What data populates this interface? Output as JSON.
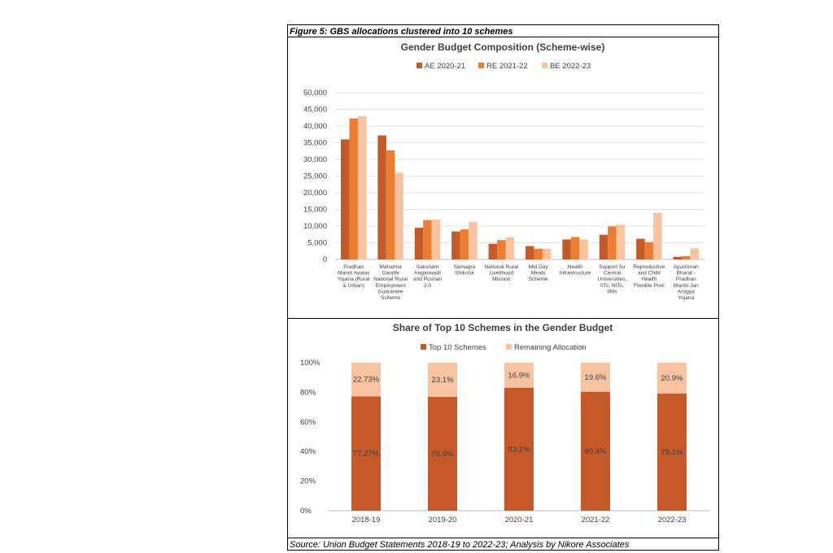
{
  "figure": {
    "caption": "Figure 5: GBS allocations clustered into 10 schemes",
    "source": "Source: Union Budget Statements 2018-19 to 2022-23; Analysis by Nikore Associates"
  },
  "colors": {
    "dark": "#c55a28",
    "mid": "#ed7d31",
    "light": "#f8c3a0",
    "grid": "#d9d9d9",
    "axis": "#bfbfbf"
  },
  "chart_data": [
    {
      "type": "bar",
      "title": "Gender Budget Composition (Scheme-wise)",
      "legend_position": "top",
      "grid": true,
      "ylim": [
        0,
        50000
      ],
      "yticks": [
        "0",
        "5,000",
        "10,000",
        "15,000",
        "20,000",
        "25,000",
        "30,000",
        "35,000",
        "40,000",
        "45,000",
        "50,000"
      ],
      "categories": [
        [
          "Pradhan",
          "Mantri Awaas",
          "Yojana (Rural",
          "& Urban)"
        ],
        [
          "Mahatma",
          "Gandhi",
          "National Rural",
          "Employment",
          "Guarantee",
          "Scheme"
        ],
        [
          "Saksham",
          "Anganwadi",
          "and Poshan",
          "2.0"
        ],
        [
          "Samagra",
          "Shiksha"
        ],
        [
          "National Rural",
          "Livelihood",
          "Mission"
        ],
        [
          "Mid Day",
          "Meals",
          "Scheme"
        ],
        [
          "Health",
          "Infrastructure"
        ],
        [
          "Support for",
          "Central",
          "Universities,",
          "IITs, NITs,",
          "IIMs"
        ],
        [
          "Reproductive",
          "and Child",
          "Health",
          "Flexible Pool"
        ],
        [
          "Ayushman",
          "Bharat -",
          "Pradhan",
          "Mantri Jan",
          "Arogya",
          "Yojana"
        ]
      ],
      "series": [
        {
          "name": "AE 2020-21",
          "color": "#c55a28",
          "values": [
            36000,
            37200,
            9500,
            8400,
            4700,
            4000,
            6000,
            7400,
            6200,
            800
          ]
        },
        {
          "name": "RE 2021-22",
          "color": "#ed7d31",
          "values": [
            42300,
            32700,
            11800,
            9000,
            5800,
            3200,
            6700,
            9900,
            5200,
            1000
          ]
        },
        {
          "name": "BE 2022-23",
          "color": "#f8c3a0",
          "values": [
            43000,
            26000,
            12000,
            11300,
            6600,
            3200,
            6000,
            10400,
            14000,
            3300
          ]
        }
      ]
    },
    {
      "type": "bar",
      "stacked": true,
      "title": "Share of Top 10 Schemes in the Gender Budget",
      "legend_position": "top",
      "grid": false,
      "ylim": [
        0,
        100
      ],
      "yticks": [
        "0%",
        "20%",
        "40%",
        "60%",
        "80%",
        "100%"
      ],
      "categories": [
        "2018-19",
        "2019-20",
        "2020-21",
        "2021-22",
        "2022-23"
      ],
      "series": [
        {
          "name": "Top 10 Schemes",
          "color": "#c55a28",
          "values": [
            77.27,
            76.9,
            83.1,
            80.4,
            79.1
          ],
          "labels": [
            "77.27%",
            "76.9%",
            "83.1%",
            "80.4%",
            "79.1%"
          ]
        },
        {
          "name": "Remaining Allocation",
          "color": "#f8c3a0",
          "values": [
            22.73,
            23.1,
            16.9,
            19.6,
            20.9
          ],
          "labels": [
            "22.73%",
            "23.1%",
            "16.9%",
            "19.6%",
            "20.9%"
          ]
        }
      ]
    }
  ]
}
